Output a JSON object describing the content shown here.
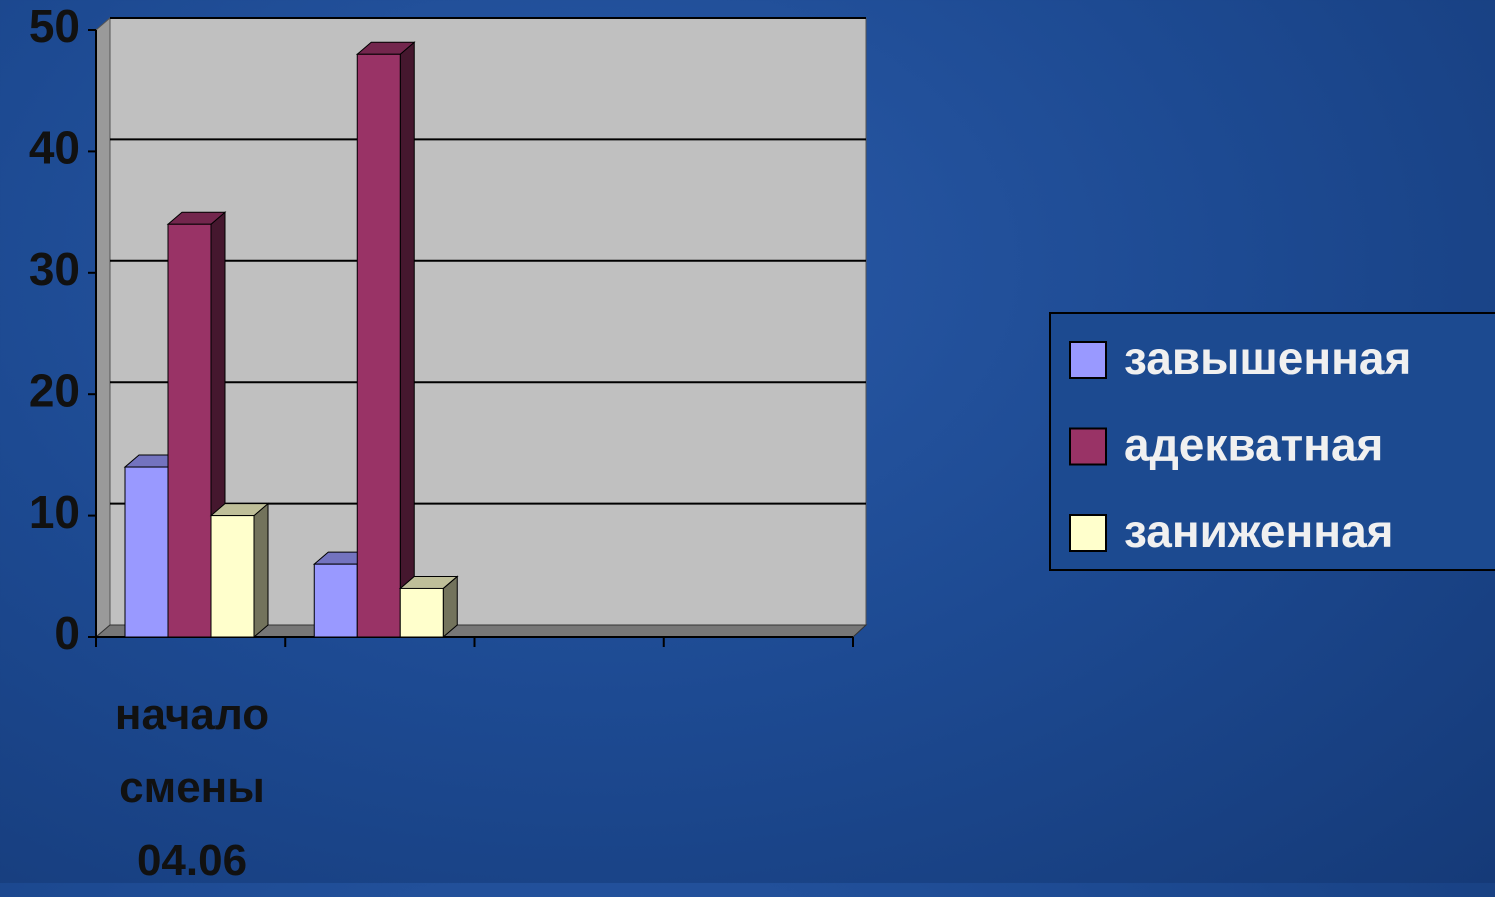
{
  "chart_data": {
    "type": "bar3d",
    "categories": [
      "начало смены 04.06",
      null,
      null,
      null
    ],
    "series": [
      {
        "name": "завышенная",
        "color": "#9999ff",
        "values": [
          14,
          6,
          null,
          null
        ]
      },
      {
        "name": "адекватная",
        "color": "#993366",
        "values": [
          34,
          48,
          null,
          null
        ]
      },
      {
        "name": "заниженная",
        "color": "#ffffcc",
        "values": [
          10,
          4,
          null,
          null
        ]
      }
    ],
    "ylim": [
      0,
      50
    ],
    "yticks": [
      0,
      10,
      20,
      30,
      40,
      50
    ],
    "grid": true,
    "legend": "right"
  }
}
